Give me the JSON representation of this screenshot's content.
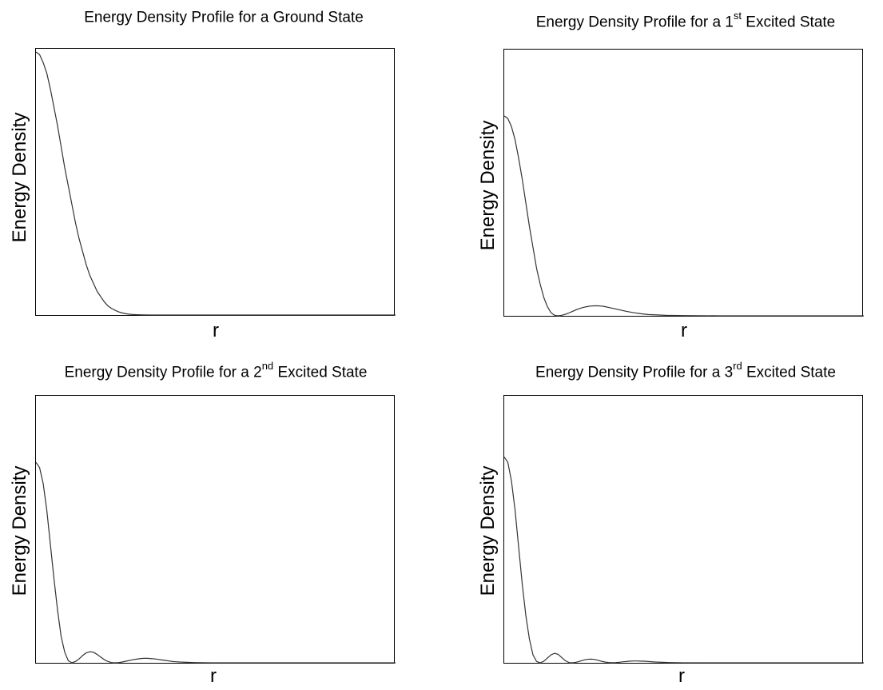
{
  "chart_data": [
    {
      "type": "line",
      "title": {
        "prefix": "Energy Density Profile for a Ground State",
        "sup": "",
        "suffix": ""
      },
      "xlabel": "r",
      "ylabel": "Energy Density",
      "xlim": [
        0,
        10
      ],
      "ylim": [
        0,
        1.0
      ],
      "series": [
        {
          "x": [
            0,
            0.1,
            0.2,
            0.3,
            0.4,
            0.5,
            0.6,
            0.7,
            0.8,
            0.9,
            1.0,
            1.1,
            1.2,
            1.3,
            1.4,
            1.5,
            1.6,
            1.7,
            1.8,
            1.9,
            2.0,
            2.1,
            2.2,
            2.3,
            2.4,
            2.5,
            2.6,
            2.7,
            2.8,
            2.9,
            3.0,
            3.2,
            3.4,
            3.6,
            3.8,
            4.0,
            5.0,
            6.0,
            7.0,
            8.0,
            9.0,
            10.0
          ],
          "y": [
            1.0,
            0.99,
            0.96,
            0.92,
            0.86,
            0.79,
            0.72,
            0.64,
            0.56,
            0.49,
            0.42,
            0.35,
            0.29,
            0.24,
            0.19,
            0.15,
            0.12,
            0.09,
            0.07,
            0.05,
            0.035,
            0.025,
            0.018,
            0.012,
            0.008,
            0.005,
            0.003,
            0.002,
            0.0013,
            0.0008,
            0.0005,
            0.0002,
            0.0001,
            0.0,
            0.0,
            0.0,
            0.0,
            0.0,
            0.0,
            0.0,
            0.0,
            0.0
          ]
        }
      ]
    },
    {
      "type": "line",
      "title": {
        "prefix": "Energy Density Profile for a 1",
        "sup": "st",
        "suffix": " Excited State"
      },
      "xlabel": "r",
      "ylabel": "Energy Density",
      "xlim": [
        0,
        10
      ],
      "ylim": [
        0,
        1.0
      ],
      "series": [
        {
          "x": [
            0,
            0.1,
            0.2,
            0.3,
            0.4,
            0.5,
            0.6,
            0.7,
            0.8,
            0.9,
            1.0,
            1.1,
            1.2,
            1.3,
            1.4,
            1.5,
            1.6,
            1.7,
            1.8,
            1.9,
            2.0,
            2.1,
            2.2,
            2.3,
            2.4,
            2.5,
            2.6,
            2.7,
            2.8,
            2.9,
            3.0,
            3.2,
            3.4,
            3.6,
            3.8,
            4.0,
            4.5,
            5.0,
            6.0,
            7.0,
            8.0,
            9.0,
            10.0
          ],
          "y": [
            0.76,
            0.75,
            0.72,
            0.67,
            0.6,
            0.52,
            0.43,
            0.34,
            0.26,
            0.18,
            0.12,
            0.07,
            0.035,
            0.012,
            0.002,
            0.0,
            0.002,
            0.006,
            0.011,
            0.017,
            0.023,
            0.028,
            0.032,
            0.035,
            0.037,
            0.038,
            0.038,
            0.037,
            0.035,
            0.032,
            0.029,
            0.023,
            0.017,
            0.012,
            0.008,
            0.005,
            0.002,
            0.001,
            0.0,
            0.0,
            0.0,
            0.0,
            0.0
          ]
        }
      ]
    },
    {
      "type": "line",
      "title": {
        "prefix": "Energy Density Profile for a 2",
        "sup": "nd",
        "suffix": " Excited State"
      },
      "xlabel": "r",
      "ylabel": "Energy Density",
      "xlim": [
        0,
        10
      ],
      "ylim": [
        0,
        1.0
      ],
      "series": [
        {
          "x": [
            0,
            0.1,
            0.2,
            0.3,
            0.4,
            0.5,
            0.6,
            0.7,
            0.8,
            0.9,
            1.0,
            1.1,
            1.2,
            1.3,
            1.4,
            1.5,
            1.6,
            1.7,
            1.8,
            1.9,
            2.0,
            2.1,
            2.2,
            2.3,
            2.4,
            2.5,
            2.6,
            2.7,
            2.8,
            2.9,
            3.0,
            3.1,
            3.2,
            3.3,
            3.4,
            3.5,
            3.6,
            3.7,
            3.8,
            3.9,
            4.0,
            4.2,
            4.4,
            4.6,
            4.8,
            5.0,
            5.5,
            6.0,
            7.0,
            8.0,
            9.0,
            10.0
          ],
          "y": [
            0.76,
            0.74,
            0.68,
            0.58,
            0.45,
            0.32,
            0.2,
            0.1,
            0.04,
            0.008,
            0.0,
            0.005,
            0.015,
            0.028,
            0.038,
            0.042,
            0.04,
            0.032,
            0.022,
            0.012,
            0.005,
            0.001,
            0.0,
            0.001,
            0.003,
            0.006,
            0.009,
            0.012,
            0.014,
            0.016,
            0.017,
            0.017,
            0.016,
            0.015,
            0.013,
            0.011,
            0.009,
            0.007,
            0.005,
            0.004,
            0.003,
            0.002,
            0.001,
            0.0005,
            0.0002,
            0.0,
            0.0,
            0.0,
            0.0,
            0.0,
            0.0,
            0.0
          ]
        }
      ]
    },
    {
      "type": "line",
      "title": {
        "prefix": "Energy Density Profile for a 3",
        "sup": "rd",
        "suffix": " Excited State"
      },
      "xlabel": "r",
      "ylabel": "Energy Density",
      "xlim": [
        0,
        10
      ],
      "ylim": [
        0,
        1.0
      ],
      "series": [
        {
          "x": [
            0,
            0.1,
            0.2,
            0.3,
            0.4,
            0.5,
            0.6,
            0.7,
            0.8,
            0.9,
            1.0,
            1.1,
            1.2,
            1.3,
            1.4,
            1.5,
            1.6,
            1.7,
            1.8,
            1.9,
            2.0,
            2.1,
            2.2,
            2.3,
            2.4,
            2.5,
            2.6,
            2.7,
            2.8,
            2.9,
            3.0,
            3.1,
            3.2,
            3.3,
            3.4,
            3.5,
            3.6,
            3.7,
            3.8,
            3.9,
            4.0,
            4.2,
            4.4,
            4.6,
            4.8,
            5.0,
            5.5,
            6.0,
            7.0,
            8.0,
            9.0,
            10.0
          ],
          "y": [
            0.78,
            0.76,
            0.69,
            0.58,
            0.44,
            0.3,
            0.18,
            0.09,
            0.03,
            0.005,
            0.0,
            0.006,
            0.018,
            0.03,
            0.036,
            0.032,
            0.02,
            0.008,
            0.001,
            0.0,
            0.002,
            0.006,
            0.01,
            0.013,
            0.014,
            0.013,
            0.01,
            0.006,
            0.003,
            0.001,
            0.0005,
            0.001,
            0.002,
            0.004,
            0.005,
            0.0065,
            0.007,
            0.007,
            0.0065,
            0.006,
            0.005,
            0.003,
            0.002,
            0.001,
            0.0005,
            0.0002,
            0.0,
            0.0,
            0.0,
            0.0,
            0.0,
            0.0
          ]
        }
      ]
    }
  ]
}
